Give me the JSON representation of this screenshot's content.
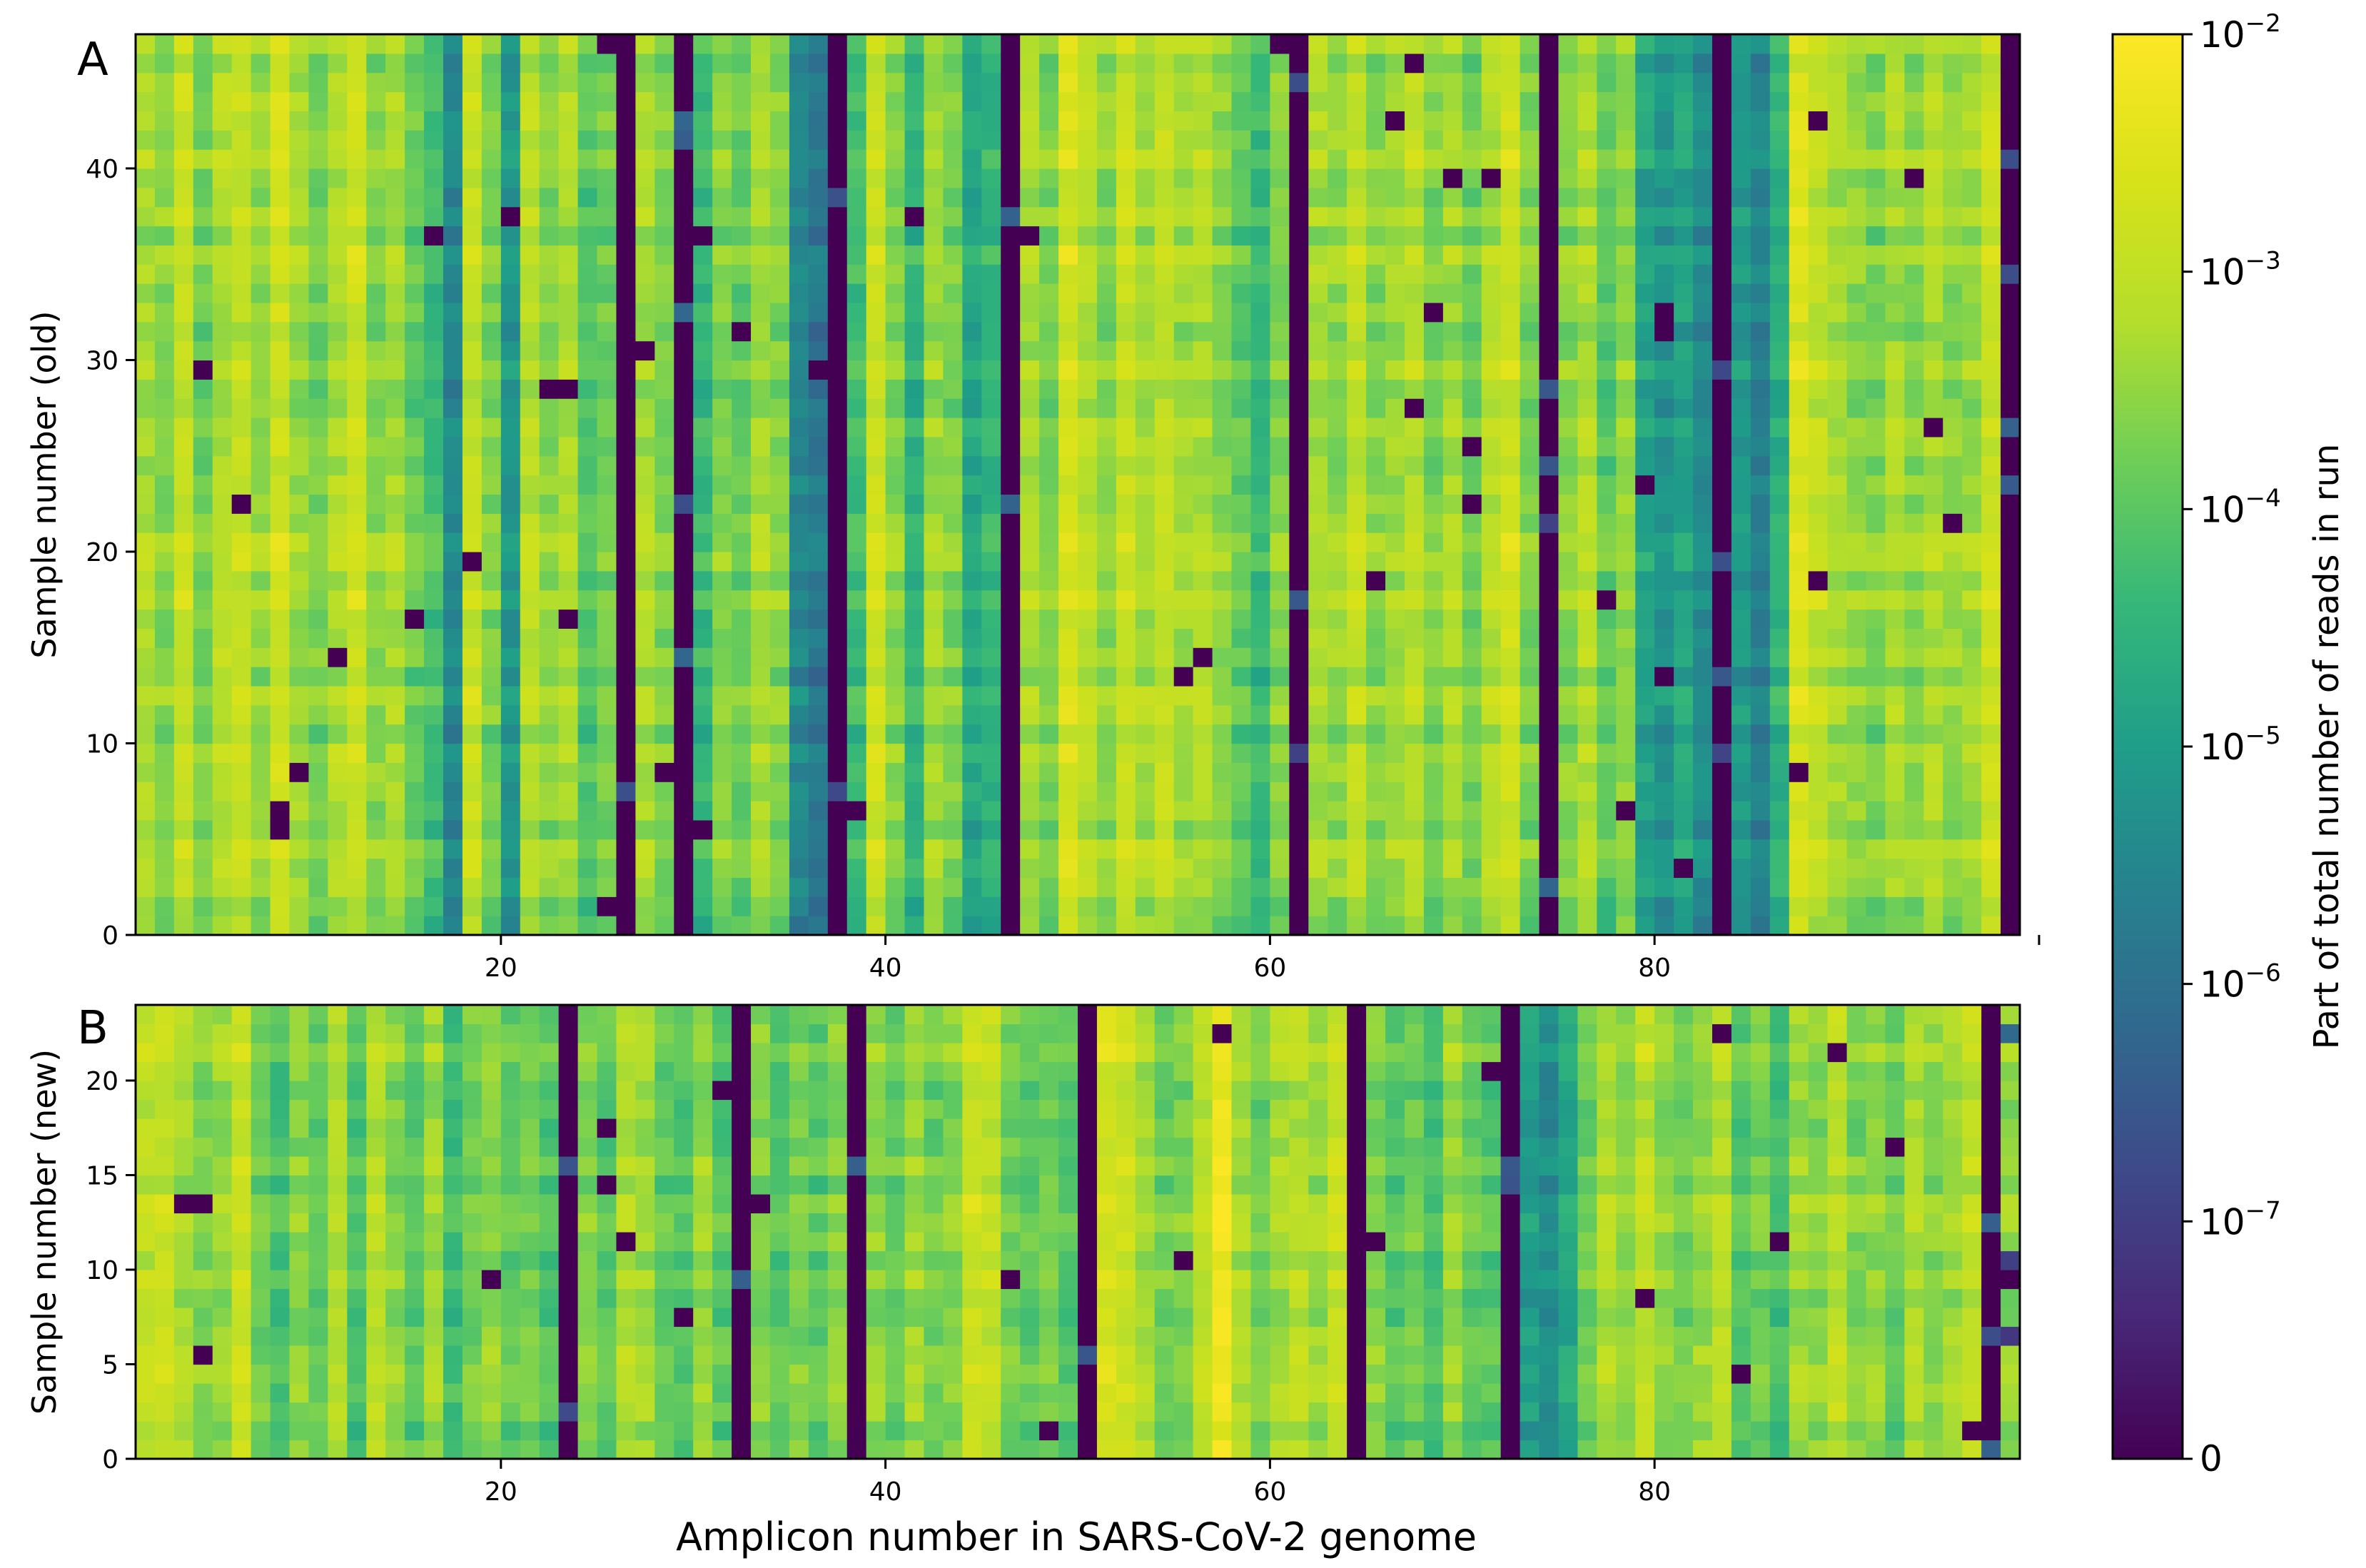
{
  "chart_data": [
    {
      "type": "heatmap",
      "panel_label": "A",
      "title": "",
      "xlabel": "",
      "ylabel": "Sample number (old)",
      "xlim": [
        1,
        99
      ],
      "ylim": [
        0,
        47
      ],
      "x_ticks": [
        20,
        40,
        60,
        80,
        100
      ],
      "x_tick_labels": [
        "20",
        "40",
        "60",
        "80",
        ""
      ],
      "y_ticks": [
        0,
        10,
        20,
        30,
        40
      ],
      "y_tick_labels": [
        "0",
        "10",
        "20",
        "30",
        "40"
      ],
      "n_amplicons": 98,
      "n_samples": 47,
      "column_profile_log10": [
        -3.3,
        -3.6,
        -2.9,
        -3.7,
        -3.2,
        -3.0,
        -3.5,
        -2.8,
        -3.4,
        -3.7,
        -3.2,
        -2.8,
        -3.6,
        -3.3,
        -3.9,
        -4.3,
        -5.5,
        -2.9,
        -3.7,
        -5.2,
        -3.1,
        -3.6,
        -3.3,
        -4.1,
        -3.8,
        -7.8,
        -3.3,
        -3.7,
        -7.8,
        -4.4,
        -3.6,
        -3.9,
        -3.3,
        -3.6,
        -5.5,
        -5.8,
        -7.8,
        -4.3,
        -2.8,
        -3.6,
        -4.5,
        -3.4,
        -3.7,
        -4.8,
        -4.5,
        -7.8,
        -3.3,
        -3.7,
        -2.7,
        -3.1,
        -3.6,
        -2.9,
        -3.3,
        -3.0,
        -3.4,
        -3.2,
        -3.6,
        -4.0,
        -4.4,
        -3.6,
        -7.8,
        -3.3,
        -3.5,
        -3.0,
        -3.6,
        -3.4,
        -3.1,
        -3.7,
        -3.3,
        -3.8,
        -3.2,
        -2.8,
        -3.7,
        -7.8,
        -3.6,
        -3.2,
        -4.0,
        -3.5,
        -4.9,
        -5.2,
        -4.9,
        -5.4,
        -7.8,
        -5.1,
        -5.6,
        -4.6,
        -2.6,
        -3.0,
        -3.3,
        -3.5,
        -3.7,
        -3.3,
        -3.6,
        -3.2,
        -3.5,
        -3.4,
        -2.9,
        -7.8
      ],
      "special_cells": [
        {
          "col": 97,
          "note": "mixed dark / blue-purple cells",
          "values_log10": [
            -7.8,
            -6.5,
            -7.0,
            -6.2
          ]
        }
      ],
      "colorbar_scale": "symlog"
    },
    {
      "type": "heatmap",
      "panel_label": "B",
      "title": "",
      "xlabel": "Amplicon number in SARS-CoV-2 genome",
      "ylabel": "Sample number (new)",
      "xlim": [
        1,
        99
      ],
      "ylim": [
        0,
        24
      ],
      "x_ticks": [
        20,
        40,
        60,
        80
      ],
      "x_tick_labels": [
        "20",
        "40",
        "60",
        "80"
      ],
      "y_ticks": [
        0,
        5,
        10,
        15,
        20
      ],
      "y_tick_labels": [
        "0",
        "5",
        "10",
        "15",
        "20"
      ],
      "n_amplicons": 98,
      "n_samples": 24,
      "column_profile_log10": [
        -3.0,
        -2.9,
        -3.3,
        -3.6,
        -3.4,
        -2.9,
        -3.8,
        -4.2,
        -3.6,
        -3.9,
        -3.2,
        -4.2,
        -3.1,
        -3.6,
        -4.0,
        -3.4,
        -4.3,
        -3.8,
        -3.5,
        -4.0,
        -3.8,
        -4.1,
        -7.8,
        -3.6,
        -4.0,
        -3.2,
        -3.4,
        -3.9,
        -4.1,
        -3.4,
        -4.0,
        -7.8,
        -3.6,
        -4.1,
        -3.7,
        -4.0,
        -3.6,
        -7.8,
        -3.5,
        -3.9,
        -3.4,
        -3.8,
        -3.6,
        -2.8,
        -3.0,
        -3.8,
        -4.0,
        -3.7,
        -4.1,
        -7.8,
        -2.7,
        -2.8,
        -3.3,
        -3.8,
        -3.7,
        -3.1,
        -2.2,
        -3.3,
        -3.8,
        -3.3,
        -3.1,
        -3.4,
        -2.9,
        -7.8,
        -3.6,
        -4.0,
        -3.8,
        -4.2,
        -3.4,
        -3.9,
        -4.0,
        -7.8,
        -5.0,
        -5.4,
        -4.8,
        -3.8,
        -3.2,
        -3.6,
        -3.0,
        -3.5,
        -3.8,
        -3.4,
        -3.1,
        -4.0,
        -3.8,
        -4.2,
        -3.4,
        -3.6,
        -3.0,
        -3.7,
        -3.5,
        -3.9,
        -3.2,
        -3.6,
        -3.4,
        -3.0,
        -7.8,
        -3.5
      ],
      "special_cells": [
        {
          "col": 97,
          "note": "dark / purple mixed cells"
        }
      ],
      "colorbar_scale": "symlog"
    }
  ],
  "colorbar": {
    "label": "Part of total number of reads in run",
    "colormap": "viridis",
    "scale": "symlog",
    "linthresh": 1e-07,
    "range": [
      0,
      0.01
    ],
    "ticks": [
      {
        "value_log10": -2,
        "base": "10",
        "exp": "−2"
      },
      {
        "value_log10": -3,
        "base": "10",
        "exp": "−3"
      },
      {
        "value_log10": -4,
        "base": "10",
        "exp": "−4"
      },
      {
        "value_log10": -5,
        "base": "10",
        "exp": "−5"
      },
      {
        "value_log10": -6,
        "base": "10",
        "exp": "−6"
      },
      {
        "value_log10": -7,
        "base": "10",
        "exp": "−7"
      }
    ],
    "zero_label": "0"
  }
}
